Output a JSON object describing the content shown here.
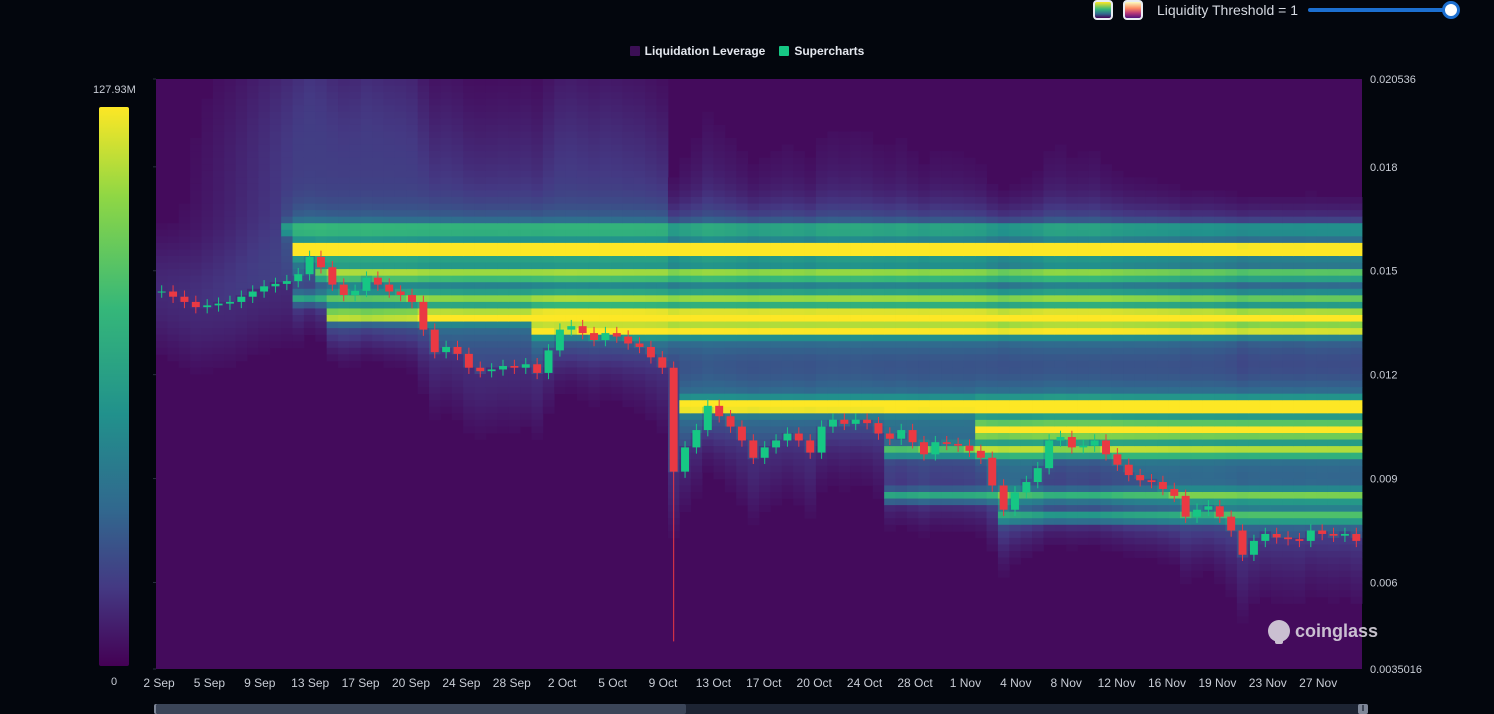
{
  "controls": {
    "threshold_label": "Liquidity Threshold = 1",
    "green_swatch": "viridis-swatch",
    "red_swatch": "magma-swatch",
    "threshold_value": 1
  },
  "legend": [
    {
      "label": "Liquidation Leverage",
      "color": "#3b0f54"
    },
    {
      "label": "Supercharts",
      "color": "#16c784"
    }
  ],
  "colorbar": {
    "max_label": "127.93M",
    "min_label": "0"
  },
  "watermark": "coinglass",
  "chart_data": {
    "type": "heatmap",
    "title": "",
    "xlabel": "",
    "ylabel": "",
    "ylim": [
      0.0035016,
      0.020536
    ],
    "y_ticks": [
      {
        "label": "0.020536",
        "value": 0.020536
      },
      {
        "label": "0.018",
        "value": 0.018
      },
      {
        "label": "0.015",
        "value": 0.015
      },
      {
        "label": "0.012",
        "value": 0.012
      },
      {
        "label": "0.009",
        "value": 0.009
      },
      {
        "label": "0.006",
        "value": 0.006
      },
      {
        "label": "0.0035016",
        "value": 0.0035016
      }
    ],
    "x_ticks": [
      "2 Sep",
      "5 Sep",
      "9 Sep",
      "13 Sep",
      "17 Sep",
      "20 Sep",
      "24 Sep",
      "28 Sep",
      "2 Oct",
      "5 Oct",
      "9 Oct",
      "13 Oct",
      "17 Oct",
      "20 Oct",
      "24 Oct",
      "28 Oct",
      "1 Nov",
      "4 Nov",
      "8 Nov",
      "12 Nov",
      "16 Nov",
      "19 Nov",
      "23 Nov",
      "27 Nov"
    ],
    "color_scale": {
      "min": 0,
      "max": 127930000,
      "colors": [
        "#440154",
        "#443983",
        "#31688e",
        "#21918c",
        "#35b779",
        "#8fd744",
        "#fde725"
      ]
    },
    "liquidity_bands": [
      {
        "price": 0.0156,
        "start_day": 12,
        "intensity": 1.0
      },
      {
        "price": 0.0137,
        "start_day": 15,
        "intensity": 0.72
      },
      {
        "price": 0.0133,
        "start_day": 33,
        "intensity": 0.62
      },
      {
        "price": 0.0149,
        "start_day": 14,
        "intensity": 0.45
      },
      {
        "price": 0.0142,
        "start_day": 12,
        "intensity": 0.4
      },
      {
        "price": 0.0162,
        "start_day": 11,
        "intensity": 0.35
      },
      {
        "price": 0.0111,
        "start_day": 46,
        "intensity": 0.95
      },
      {
        "price": 0.0104,
        "start_day": 72,
        "intensity": 0.82
      },
      {
        "price": 0.0098,
        "start_day": 64,
        "intensity": 0.5
      },
      {
        "price": 0.0085,
        "start_day": 64,
        "intensity": 0.45
      },
      {
        "price": 0.0079,
        "start_day": 74,
        "intensity": 0.4
      }
    ],
    "candles_close": [
      0.0144,
      0.01425,
      0.0141,
      0.01395,
      0.014,
      0.01405,
      0.0141,
      0.01425,
      0.0144,
      0.01455,
      0.01462,
      0.0147,
      0.0149,
      0.0154,
      0.0151,
      0.0146,
      0.0143,
      0.01442,
      0.0148,
      0.0146,
      0.0144,
      0.0143,
      0.0141,
      0.0133,
      0.01265,
      0.0128,
      0.0126,
      0.0122,
      0.0121,
      0.01215,
      0.01225,
      0.0122,
      0.0123,
      0.01205,
      0.0127,
      0.0133,
      0.0134,
      0.0132,
      0.013,
      0.0132,
      0.0131,
      0.0129,
      0.0128,
      0.0125,
      0.0122,
      0.0092,
      0.0099,
      0.0104,
      0.0111,
      0.0108,
      0.0105,
      0.0101,
      0.0096,
      0.0099,
      0.0101,
      0.0103,
      0.0101,
      0.00975,
      0.0105,
      0.0107,
      0.01058,
      0.0107,
      0.0106,
      0.0103,
      0.01015,
      0.0104,
      0.01005,
      0.0097,
      0.01005,
      0.01,
      0.00995,
      0.0098,
      0.0096,
      0.0088,
      0.0081,
      0.0086,
      0.0089,
      0.0093,
      0.0101,
      0.0102,
      0.0099,
      0.00995,
      0.0101,
      0.0097,
      0.0094,
      0.0091,
      0.00895,
      0.0089,
      0.0087,
      0.0085,
      0.0079,
      0.0081,
      0.0082,
      0.0079,
      0.0075,
      0.0068,
      0.0072,
      0.0074,
      0.0073,
      0.00725,
      0.0072,
      0.0075,
      0.0074,
      0.00735,
      0.0074,
      0.0072
    ],
    "wick_low": {
      "day": 45,
      "price": 0.0043
    }
  }
}
